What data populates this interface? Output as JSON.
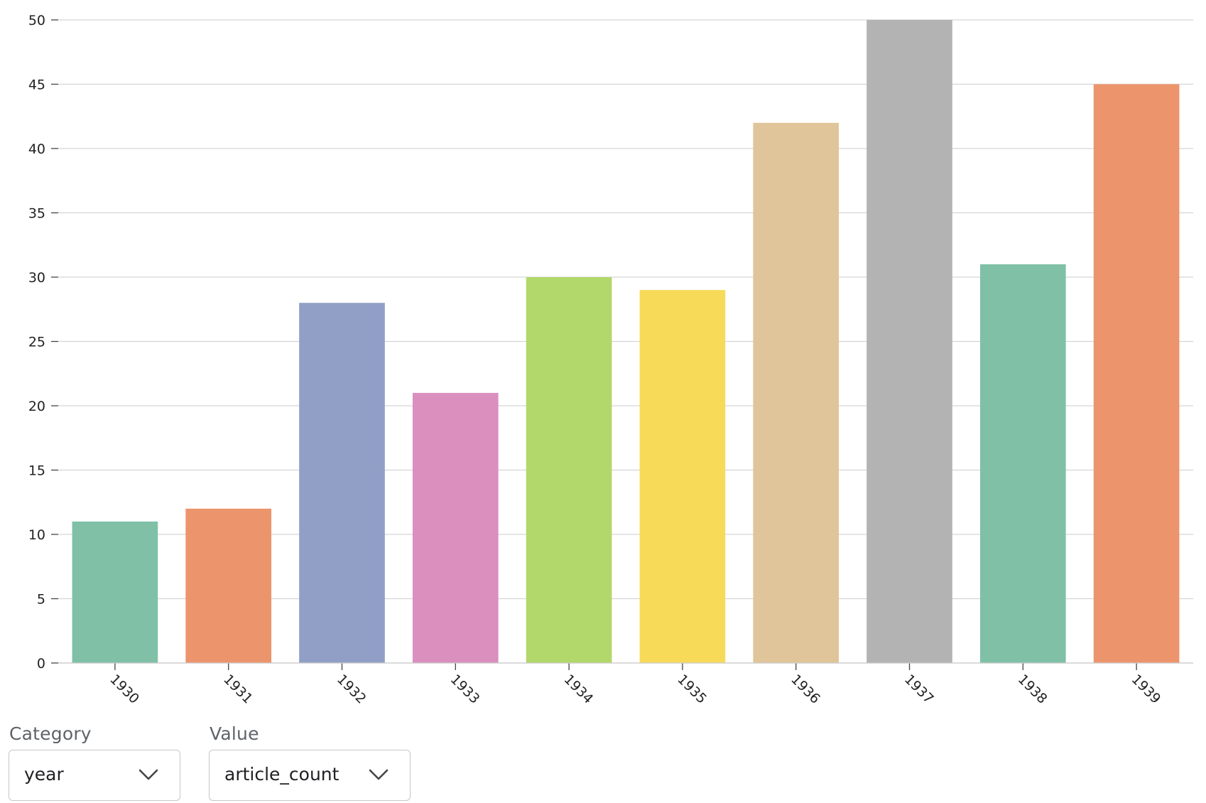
{
  "chart_data": {
    "type": "bar",
    "categories": [
      "1930",
      "1931",
      "1932",
      "1933",
      "1934",
      "1935",
      "1936",
      "1937",
      "1938",
      "1939"
    ],
    "values": [
      11,
      12,
      28,
      21,
      30,
      29,
      42,
      50,
      31,
      45
    ],
    "colors": [
      "#7fc0a6",
      "#ec946c",
      "#919fc7",
      "#da8fbf",
      "#b2d76a",
      "#f7da58",
      "#e0c59a",
      "#b3b3b3",
      "#7fc0a6",
      "#ec946c"
    ],
    "ylim": [
      0,
      50
    ],
    "yticks": [
      0,
      5,
      10,
      15,
      20,
      25,
      30,
      35,
      40,
      45,
      50
    ],
    "grid": true,
    "title": "",
    "xlabel": "",
    "ylabel": ""
  },
  "controls": {
    "category": {
      "label": "Category",
      "value": "year",
      "icon": "chevron-down-icon"
    },
    "value": {
      "label": "Value",
      "value": "article_count",
      "icon": "chevron-down-icon"
    }
  }
}
